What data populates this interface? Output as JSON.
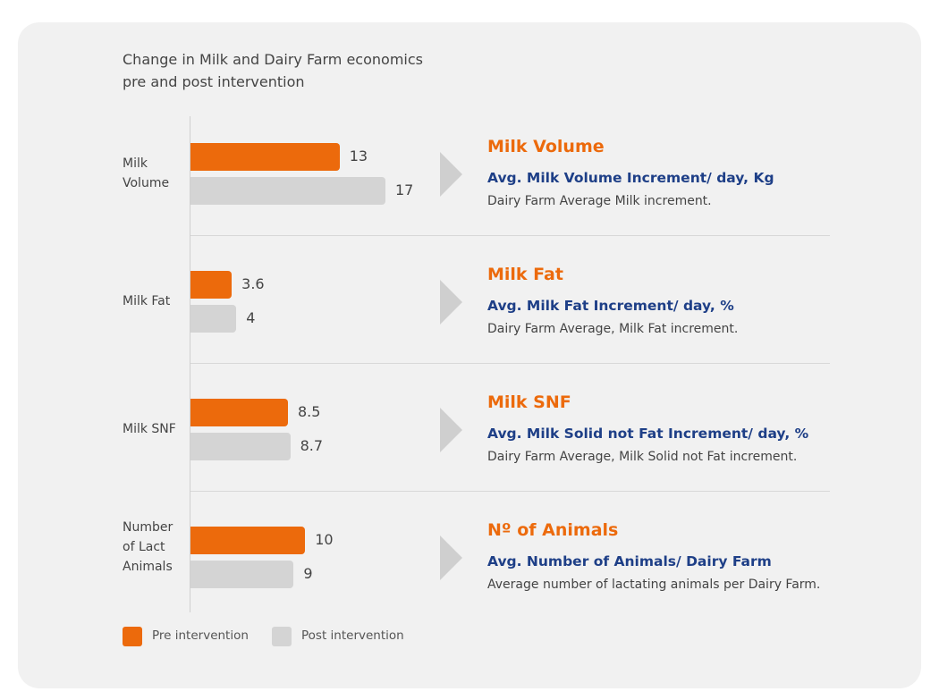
{
  "chart_data": {
    "type": "bar",
    "orientation": "horizontal",
    "title": "Change in Milk and Dairy Farm economics pre and post intervention",
    "categories": [
      "Milk Volume",
      "Milk Fat",
      "Milk SNF",
      "Number of Lact Animals"
    ],
    "series": [
      {
        "name": "Pre intervention",
        "color": "#ec6a0c",
        "values": [
          13,
          3.6,
          8.5,
          10
        ]
      },
      {
        "name": "Post intervention",
        "color": "#d4d4d4",
        "values": [
          17,
          4,
          8.7,
          9
        ]
      }
    ]
  },
  "details": [
    {
      "heading": "Milk Volume",
      "subheading": "Avg. Milk Volume Increment/ day, Kg",
      "description": "Dairy Farm Average Milk increment."
    },
    {
      "heading": "Milk Fat",
      "subheading": "Avg. Milk Fat Increment/ day, %",
      "description": "Dairy Farm Average, Milk Fat increment."
    },
    {
      "heading": "Milk SNF",
      "subheading": "Avg. Milk Solid not Fat Increment/ day, %",
      "description": "Dairy Farm Average, Milk Solid not Fat increment."
    },
    {
      "heading": "Nº of Animals",
      "subheading": "Avg. Number of Animals/ Dairy Farm",
      "description": "Average number of lactating animals per Dairy Farm."
    }
  ]
}
